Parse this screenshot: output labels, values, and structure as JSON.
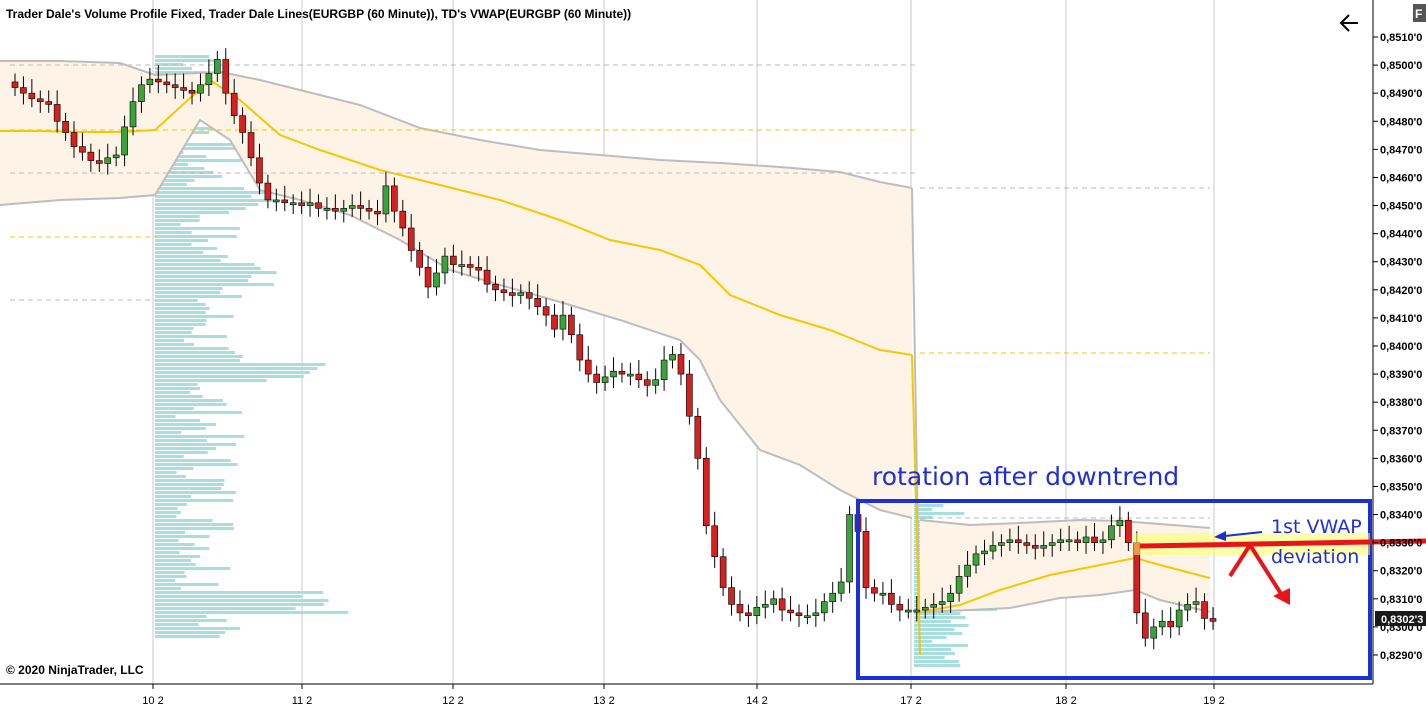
{
  "window": {
    "title": "Trader Dale's Volume Profile Fixed, Trader Dale Lines(EURGBP (60 Minute)), TD's VWAP(EURGBP (60 Minute))",
    "copyright": "© 2020 NinjaTrader, LLC",
    "back_icon": "arrow-left-icon",
    "corner_badge": "F"
  },
  "chart_data": {
    "type": "candlestick",
    "instrument": "EURGBP",
    "xlabel": "",
    "ylabel": "",
    "x_tick_labels": [
      "10 2",
      "11 2",
      "12 2",
      "13 2",
      "14 2",
      "17 2",
      "18 2",
      "19 2"
    ],
    "y_tick_labels": [
      "0,8510'0",
      "0,8500'0",
      "0,8490'0",
      "0,8480'0",
      "0,8470'0",
      "0,8460'0",
      "0,8450'0",
      "0,8440'0",
      "0,8430'0",
      "0,8420'0",
      "0,8410'0",
      "0,8400'0",
      "0,8390'0",
      "0,8380'0",
      "0,8370'0",
      "0,8360'0",
      "0,8350'0",
      "0,8340'0",
      "0,8330'0",
      "0,8320'0",
      "0,8310'0",
      "0,8300'0",
      "0,8290'0"
    ],
    "ylim": [
      0.8283,
      0.8516
    ],
    "last_price_label": "0,8302'3",
    "last_price": 0.83023,
    "grid": "vertical lines at day separators",
    "closes": [
      0.8492,
      0.849,
      0.8488,
      0.8487,
      0.8486,
      0.848,
      0.8476,
      0.8471,
      0.8469,
      0.8466,
      0.8465,
      0.8467,
      0.8468,
      0.8478,
      0.8487,
      0.8493,
      0.8495,
      0.8494,
      0.8493,
      0.8492,
      0.8491,
      0.849,
      0.8493,
      0.8497,
      0.8502,
      0.849,
      0.8482,
      0.8476,
      0.8467,
      0.8458,
      0.8452,
      0.8452,
      0.8451,
      0.8451,
      0.845,
      0.8451,
      0.8449,
      0.8449,
      0.8448,
      0.8449,
      0.845,
      0.8449,
      0.8448,
      0.8447,
      0.8457,
      0.8448,
      0.8442,
      0.8434,
      0.8428,
      0.8421,
      0.8426,
      0.8432,
      0.8429,
      0.8429,
      0.8428,
      0.8427,
      0.8422,
      0.842,
      0.8419,
      0.8418,
      0.8419,
      0.8417,
      0.8414,
      0.8411,
      0.8406,
      0.8411,
      0.8404,
      0.8395,
      0.839,
      0.8387,
      0.8389,
      0.8391,
      0.839,
      0.839,
      0.8388,
      0.8386,
      0.8388,
      0.8395,
      0.8397,
      0.839,
      0.8375,
      0.836,
      0.8336,
      0.8325,
      0.8314,
      0.8308,
      0.8305,
      0.8304,
      0.8307,
      0.8308,
      0.831,
      0.8306,
      0.8305,
      0.8304,
      0.8304,
      0.8305,
      0.8309,
      0.8312,
      0.8316,
      0.834,
      0.8334,
      0.8314,
      0.8312,
      0.8312,
      0.8308,
      0.8306,
      0.8306,
      0.8306,
      0.8307,
      0.8308,
      0.8309,
      0.8312,
      0.8318,
      0.8322,
      0.8326,
      0.8327,
      0.8329,
      0.833,
      0.8331,
      0.833,
      0.8329,
      0.8328,
      0.8329,
      0.833,
      0.8331,
      0.8331,
      0.833,
      0.8332,
      0.833,
      0.8331,
      0.8336,
      0.8338,
      0.833,
      0.8305,
      0.8296,
      0.83,
      0.8302,
      0.83,
      0.8306,
      0.8308,
      0.8309,
      0.8303,
      0.8302
    ],
    "vwap_line_label": "TD's VWAP",
    "volume_profile_label": "Trader Dale's Volume Profile Fixed"
  },
  "annotations": {
    "box_title": "rotation after downtrend",
    "arrow_note_line1": "1st VWAP",
    "arrow_note_line2": "deviation",
    "colors": {
      "box": "#1f2fd6",
      "vwap_line": "#ffd21a",
      "resistance_line": "#e8141c",
      "down_arrow": "#e8141c"
    }
  },
  "colors": {
    "bull_candle": "#3ca33c",
    "bear_candle": "#d42121",
    "profile_bar": "#a8dede",
    "vwap_band_fill": "#fdf3e6",
    "vwap_band_edge": "#bdbdbd",
    "vwap_center": "#f5c800"
  }
}
